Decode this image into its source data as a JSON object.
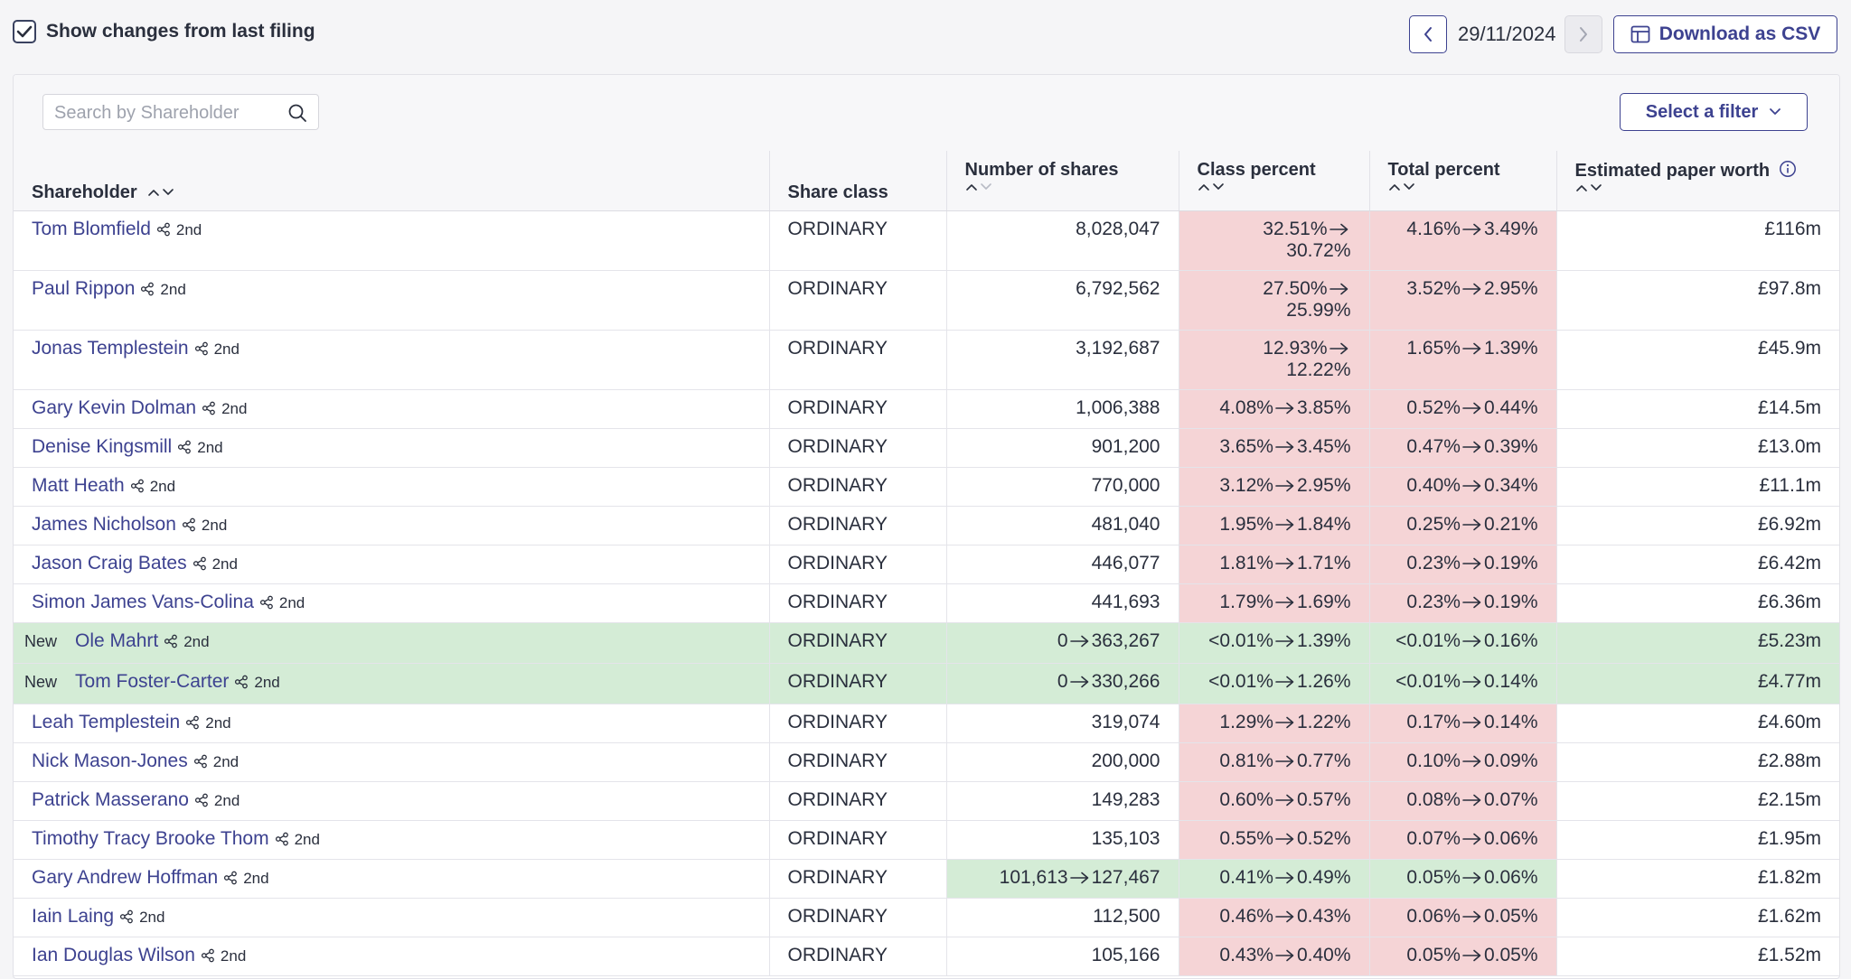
{
  "toolbar": {
    "show_changes_label": "Show changes from last filing",
    "show_changes_checked": true,
    "date": "29/11/2024",
    "download_label": "Download as CSV"
  },
  "panel": {
    "search_placeholder": "Search by Shareholder",
    "filter_label": "Select a filter"
  },
  "columns": {
    "shareholder": "Shareholder",
    "share_class": "Share class",
    "num_shares": "Number of shares",
    "class_percent": "Class percent",
    "total_percent": "Total percent",
    "paper_worth": "Estimated paper worth"
  },
  "colors": {
    "accent": "#3d4290",
    "decrease_bg": "#f5d4d6",
    "increase_bg": "#d4ecd6"
  },
  "rows": [
    {
      "name": "Tom Blomfield",
      "degree": "2nd",
      "new": false,
      "share_class": "ORDINARY",
      "shares": "8,028,047",
      "shares_change": "none",
      "class_from": "32.51%",
      "class_to": "30.72%",
      "class_change": "down",
      "total_from": "4.16%",
      "total_to": "3.49%",
      "total_change": "down",
      "worth": "£116m",
      "wrap": true
    },
    {
      "name": "Paul Rippon",
      "degree": "2nd",
      "new": false,
      "share_class": "ORDINARY",
      "shares": "6,792,562",
      "shares_change": "none",
      "class_from": "27.50%",
      "class_to": "25.99%",
      "class_change": "down",
      "total_from": "3.52%",
      "total_to": "2.95%",
      "total_change": "down",
      "worth": "£97.8m",
      "wrap": true
    },
    {
      "name": "Jonas Templestein",
      "degree": "2nd",
      "new": false,
      "share_class": "ORDINARY",
      "shares": "3,192,687",
      "shares_change": "none",
      "class_from": "12.93%",
      "class_to": "12.22%",
      "class_change": "down",
      "total_from": "1.65%",
      "total_to": "1.39%",
      "total_change": "down",
      "worth": "£45.9m",
      "wrap": true
    },
    {
      "name": "Gary Kevin Dolman",
      "degree": "2nd",
      "new": false,
      "share_class": "ORDINARY",
      "shares": "1,006,388",
      "shares_change": "none",
      "class_from": "4.08%",
      "class_to": "3.85%",
      "class_change": "down",
      "total_from": "0.52%",
      "total_to": "0.44%",
      "total_change": "down",
      "worth": "£14.5m",
      "wrap": false
    },
    {
      "name": "Denise Kingsmill",
      "degree": "2nd",
      "new": false,
      "share_class": "ORDINARY",
      "shares": "901,200",
      "shares_change": "none",
      "class_from": "3.65%",
      "class_to": "3.45%",
      "class_change": "down",
      "total_from": "0.47%",
      "total_to": "0.39%",
      "total_change": "down",
      "worth": "£13.0m",
      "wrap": false
    },
    {
      "name": "Matt Heath",
      "degree": "2nd",
      "new": false,
      "share_class": "ORDINARY",
      "shares": "770,000",
      "shares_change": "none",
      "class_from": "3.12%",
      "class_to": "2.95%",
      "class_change": "down",
      "total_from": "0.40%",
      "total_to": "0.34%",
      "total_change": "down",
      "worth": "£11.1m",
      "wrap": false
    },
    {
      "name": "James Nicholson",
      "degree": "2nd",
      "new": false,
      "share_class": "ORDINARY",
      "shares": "481,040",
      "shares_change": "none",
      "class_from": "1.95%",
      "class_to": "1.84%",
      "class_change": "down",
      "total_from": "0.25%",
      "total_to": "0.21%",
      "total_change": "down",
      "worth": "£6.92m",
      "wrap": false
    },
    {
      "name": "Jason Craig Bates",
      "degree": "2nd",
      "new": false,
      "share_class": "ORDINARY",
      "shares": "446,077",
      "shares_change": "none",
      "class_from": "1.81%",
      "class_to": "1.71%",
      "class_change": "down",
      "total_from": "0.23%",
      "total_to": "0.19%",
      "total_change": "down",
      "worth": "£6.42m",
      "wrap": false
    },
    {
      "name": "Simon James Vans-Colina",
      "degree": "2nd",
      "new": false,
      "share_class": "ORDINARY",
      "shares": "441,693",
      "shares_change": "none",
      "class_from": "1.79%",
      "class_to": "1.69%",
      "class_change": "down",
      "total_from": "0.23%",
      "total_to": "0.19%",
      "total_change": "down",
      "worth": "£6.36m",
      "wrap": false
    },
    {
      "name": "Ole Mahrt",
      "degree": "2nd",
      "new": true,
      "new_label": "New",
      "share_class": "ORDINARY",
      "shares_from": "0",
      "shares": "363,267",
      "shares_change": "up",
      "class_from": "<0.01%",
      "class_to": "1.39%",
      "class_change": "up",
      "total_from": "<0.01%",
      "total_to": "0.16%",
      "total_change": "up",
      "worth": "£5.23m",
      "wrap": false
    },
    {
      "name": "Tom Foster-Carter",
      "degree": "2nd",
      "new": true,
      "new_label": "New",
      "share_class": "ORDINARY",
      "shares_from": "0",
      "shares": "330,266",
      "shares_change": "up",
      "class_from": "<0.01%",
      "class_to": "1.26%",
      "class_change": "up",
      "total_from": "<0.01%",
      "total_to": "0.14%",
      "total_change": "up",
      "worth": "£4.77m",
      "wrap": false
    },
    {
      "name": "Leah Templestein",
      "degree": "2nd",
      "new": false,
      "share_class": "ORDINARY",
      "shares": "319,074",
      "shares_change": "none",
      "class_from": "1.29%",
      "class_to": "1.22%",
      "class_change": "down",
      "total_from": "0.17%",
      "total_to": "0.14%",
      "total_change": "down",
      "worth": "£4.60m",
      "wrap": false
    },
    {
      "name": "Nick Mason-Jones",
      "degree": "2nd",
      "new": false,
      "share_class": "ORDINARY",
      "shares": "200,000",
      "shares_change": "none",
      "class_from": "0.81%",
      "class_to": "0.77%",
      "class_change": "down",
      "total_from": "0.10%",
      "total_to": "0.09%",
      "total_change": "down",
      "worth": "£2.88m",
      "wrap": false
    },
    {
      "name": "Patrick Masserano",
      "degree": "2nd",
      "new": false,
      "share_class": "ORDINARY",
      "shares": "149,283",
      "shares_change": "none",
      "class_from": "0.60%",
      "class_to": "0.57%",
      "class_change": "down",
      "total_from": "0.08%",
      "total_to": "0.07%",
      "total_change": "down",
      "worth": "£2.15m",
      "wrap": false
    },
    {
      "name": "Timothy Tracy Brooke Thom",
      "degree": "2nd",
      "new": false,
      "share_class": "ORDINARY",
      "shares": "135,103",
      "shares_change": "none",
      "class_from": "0.55%",
      "class_to": "0.52%",
      "class_change": "down",
      "total_from": "0.07%",
      "total_to": "0.06%",
      "total_change": "down",
      "worth": "£1.95m",
      "wrap": false
    },
    {
      "name": "Gary Andrew Hoffman",
      "degree": "2nd",
      "new": false,
      "share_class": "ORDINARY",
      "shares_from": "101,613",
      "shares": "127,467",
      "shares_change": "up",
      "class_from": "0.41%",
      "class_to": "0.49%",
      "class_change": "up",
      "total_from": "0.05%",
      "total_to": "0.06%",
      "total_change": "up",
      "worth": "£1.82m",
      "wrap": false
    },
    {
      "name": "Iain Laing",
      "degree": "2nd",
      "new": false,
      "share_class": "ORDINARY",
      "shares": "112,500",
      "shares_change": "none",
      "class_from": "0.46%",
      "class_to": "0.43%",
      "class_change": "down",
      "total_from": "0.06%",
      "total_to": "0.05%",
      "total_change": "down",
      "worth": "£1.62m",
      "wrap": false
    },
    {
      "name": "Ian Douglas Wilson",
      "degree": "2nd",
      "new": false,
      "share_class": "ORDINARY",
      "shares": "105,166",
      "shares_change": "none",
      "class_from": "0.43%",
      "class_to": "0.40%",
      "class_change": "down",
      "total_from": "0.05%",
      "total_to": "0.05%",
      "total_change": "down",
      "worth": "£1.52m",
      "wrap": false
    }
  ]
}
